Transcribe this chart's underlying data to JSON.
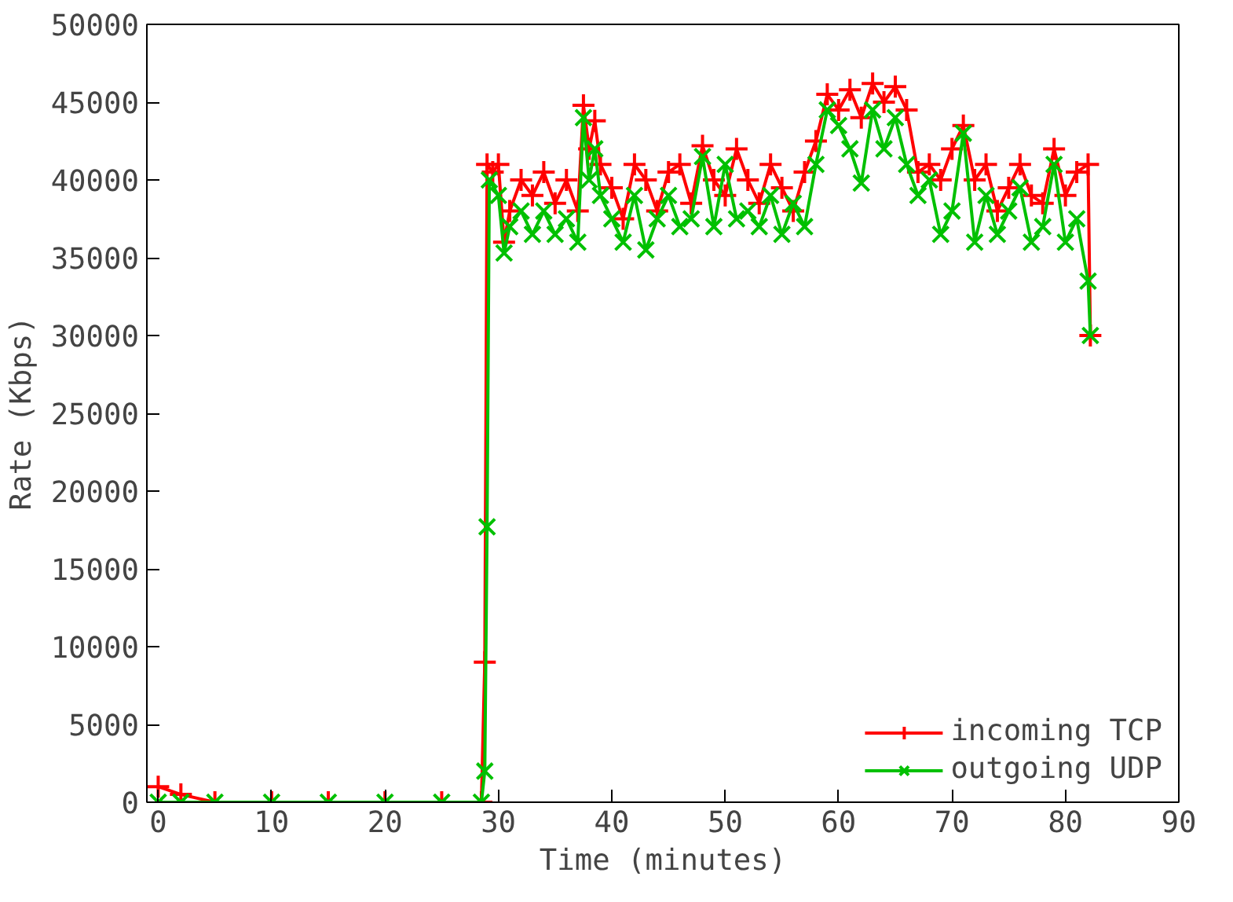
{
  "chart_data": {
    "type": "line",
    "xlabel": "Time (minutes)",
    "ylabel": "Rate (Kbps)",
    "xlim": [
      -1,
      90
    ],
    "ylim": [
      0,
      50000
    ],
    "xticks": [
      0,
      10,
      20,
      30,
      40,
      50,
      60,
      70,
      80,
      90
    ],
    "yticks": [
      0,
      5000,
      10000,
      15000,
      20000,
      25000,
      30000,
      35000,
      40000,
      45000,
      50000
    ],
    "grid": false,
    "legend": "bottom right",
    "series": [
      {
        "name": "incoming TCP",
        "color": "#ff0000",
        "marker": "cross",
        "x": [
          0,
          2,
          5,
          10,
          15,
          20,
          25,
          28.5,
          28.8,
          29,
          29.5,
          30,
          30.5,
          31,
          32,
          33,
          34,
          35,
          36,
          37,
          37.5,
          38,
          38.5,
          39,
          40,
          41,
          42,
          43,
          44,
          45,
          46,
          47,
          48,
          49,
          50,
          51,
          52,
          53,
          54,
          55,
          56,
          57,
          58,
          59,
          60,
          61,
          62,
          63,
          64,
          65,
          66,
          67,
          68,
          69,
          70,
          71,
          72,
          73,
          74,
          75,
          76,
          77,
          78,
          79,
          80,
          81,
          82,
          82.2
        ],
        "values": [
          1000,
          500,
          0,
          0,
          0,
          0,
          0,
          0,
          9000,
          41000,
          40500,
          41000,
          36000,
          38000,
          40000,
          39000,
          40500,
          38500,
          40000,
          38000,
          44800,
          42000,
          43800,
          41000,
          39500,
          37500,
          41000,
          40000,
          38000,
          40500,
          41000,
          38500,
          42200,
          40000,
          39000,
          42000,
          40000,
          38500,
          41000,
          39500,
          38000,
          40500,
          42500,
          45500,
          44500,
          45800,
          44000,
          46200,
          45000,
          46000,
          44500,
          40500,
          41000,
          40000,
          42000,
          43500,
          40000,
          41000,
          38000,
          39500,
          41000,
          39000,
          38500,
          42000,
          39000,
          40500,
          41000,
          30000
        ]
      },
      {
        "name": "outgoing UDP",
        "color": "#00c000",
        "marker": "x",
        "x": [
          0,
          2,
          5,
          10,
          15,
          20,
          25,
          28.5,
          28.8,
          29,
          29.2,
          30,
          30.5,
          31,
          32,
          33,
          34,
          35,
          36,
          37,
          37.5,
          38,
          38.5,
          39,
          40,
          41,
          42,
          43,
          44,
          45,
          46,
          47,
          48,
          49,
          50,
          51,
          52,
          53,
          54,
          55,
          56,
          57,
          58,
          59,
          60,
          61,
          62,
          63,
          64,
          65,
          66,
          67,
          68,
          69,
          70,
          71,
          72,
          73,
          74,
          75,
          76,
          77,
          78,
          79,
          80,
          81,
          82,
          82.2
        ],
        "values": [
          0,
          0,
          0,
          0,
          0,
          0,
          0,
          0,
          2000,
          17700,
          40000,
          39000,
          35300,
          37000,
          38000,
          36500,
          38000,
          36500,
          37500,
          36000,
          44000,
          40000,
          42000,
          39000,
          37500,
          36000,
          39000,
          35500,
          37500,
          39000,
          37000,
          37500,
          41500,
          37000,
          41000,
          37500,
          38000,
          37000,
          39000,
          36500,
          38500,
          37000,
          41000,
          44500,
          43500,
          42000,
          39800,
          44500,
          42000,
          44000,
          41000,
          39000,
          40000,
          36500,
          38000,
          43000,
          36000,
          39000,
          36500,
          38000,
          39500,
          36000,
          37000,
          41000,
          36000,
          37500,
          33500,
          30000
        ]
      }
    ]
  }
}
